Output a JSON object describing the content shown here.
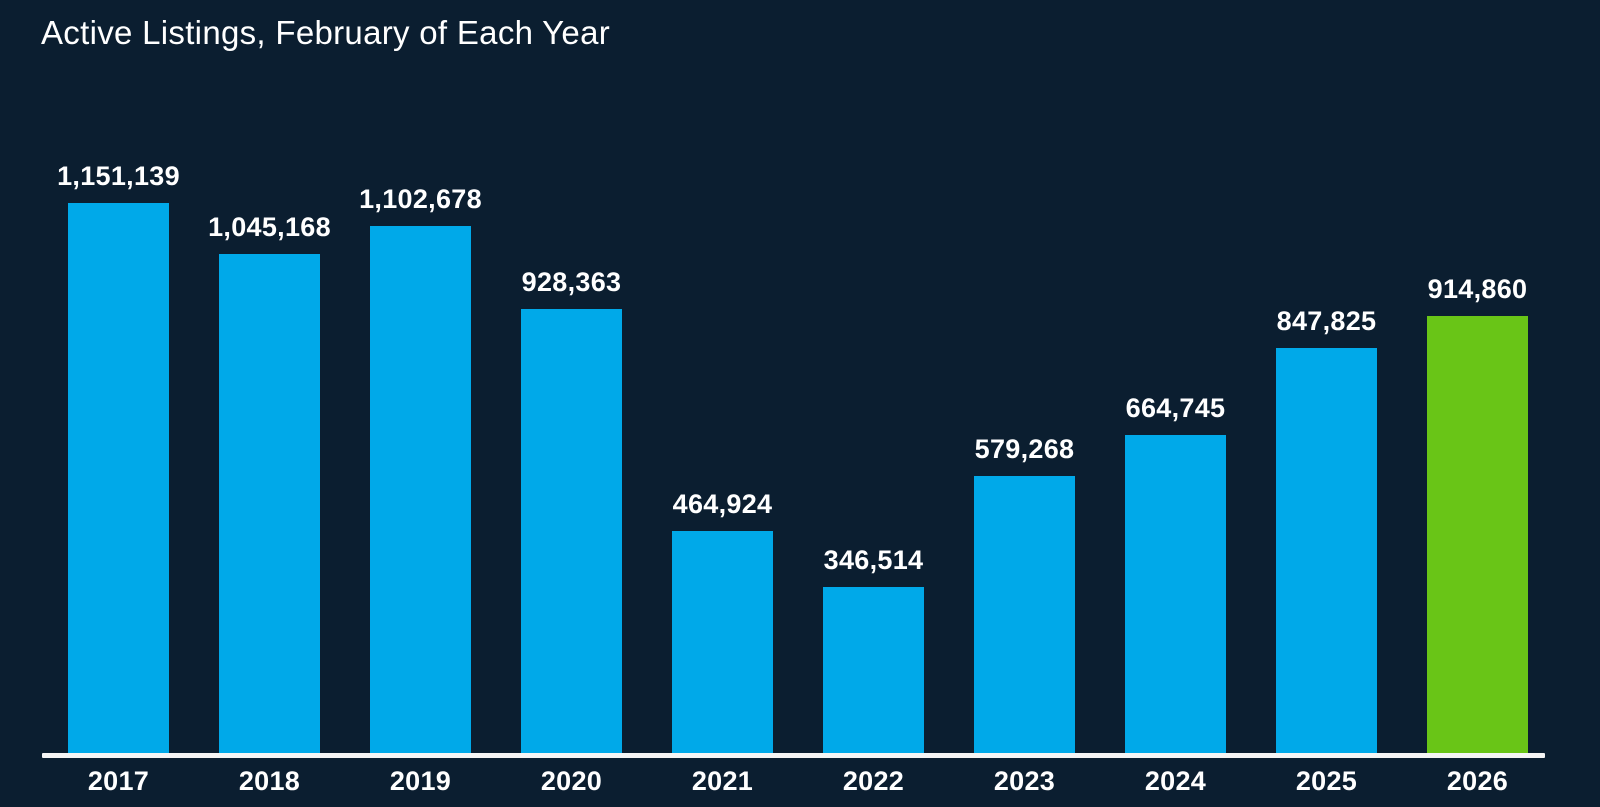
{
  "page": {
    "background_color": "#0b1e30"
  },
  "chart_data": {
    "type": "bar",
    "title": "Active Listings, February of Each Year",
    "categories": [
      "2017",
      "2018",
      "2019",
      "2020",
      "2021",
      "2022",
      "2023",
      "2024",
      "2025",
      "2026"
    ],
    "values": [
      1151139,
      1045168,
      1102678,
      928363,
      464924,
      346514,
      579268,
      664745,
      847825,
      914860
    ],
    "value_labels": [
      "1,151,139",
      "1,045,168",
      "1,102,678",
      "928,363",
      "464,924",
      "346,514",
      "579,268",
      "664,745",
      "847,825",
      "914,860"
    ],
    "xlabel": "",
    "ylabel": "",
    "ylim": [
      0,
      1151139
    ],
    "grid": false,
    "legend": false,
    "bar_color": "#00a9e9",
    "highlight_color": "#69c517",
    "highlight_index": 9,
    "label_color": "#ffffff",
    "axis_line_color": "#f5f5f5",
    "background_color": "#0b1e30"
  }
}
